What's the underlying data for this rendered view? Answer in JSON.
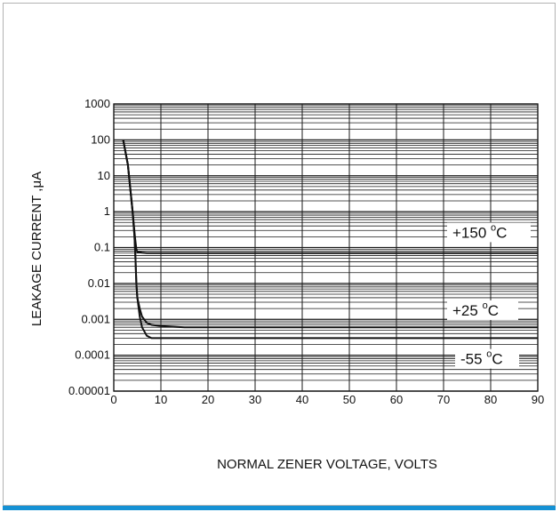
{
  "chart_data": {
    "type": "line",
    "title": "",
    "xlabel": "NORMAL ZENER VOLTAGE, VOLTS",
    "ylabel": "LEAKAGE CURRENT ,μA",
    "xlim": [
      0,
      90
    ],
    "ylim": [
      1e-05,
      1000
    ],
    "yscale": "log",
    "grid": true,
    "x_ticks": [
      "0",
      "10",
      "20",
      "30",
      "40",
      "50",
      "60",
      "70",
      "80",
      "90"
    ],
    "y_ticks": [
      "0.00001",
      "0.0001",
      "0.001",
      "0.01",
      "0.1",
      "1",
      "10",
      "100",
      "1000"
    ],
    "series": [
      {
        "name": "+150 °C",
        "label_main": "+150",
        "label_sup": "o",
        "label_unit": "C",
        "x": [
          2,
          3,
          4,
          4.5,
          4.8,
          5,
          6,
          7,
          10,
          20,
          30,
          40,
          50,
          60,
          70,
          80,
          90
        ],
        "y": [
          100,
          20,
          1,
          0.2,
          0.09,
          0.075,
          0.072,
          0.07,
          0.07,
          0.07,
          0.07,
          0.07,
          0.07,
          0.07,
          0.07,
          0.07,
          0.07
        ]
      },
      {
        "name": "+25 °C",
        "label_main": "+25",
        "label_sup": "o",
        "label_unit": "C",
        "x": [
          2,
          3,
          4,
          4.4,
          4.6,
          4.8,
          5,
          5.5,
          6,
          7,
          8,
          10,
          15,
          20,
          30,
          40,
          50,
          60,
          70,
          80,
          90
        ],
        "y": [
          100,
          20,
          1,
          0.2,
          0.05,
          0.01,
          0.004,
          0.002,
          0.0012,
          0.0008,
          0.0007,
          0.00065,
          0.0006,
          0.0006,
          0.0006,
          0.0006,
          0.0006,
          0.0006,
          0.0006,
          0.0006,
          0.0006
        ]
      },
      {
        "name": "-55 °C",
        "label_main": "-55",
        "label_sup": "o",
        "label_unit": "C",
        "x": [
          2,
          3,
          4,
          4.4,
          4.6,
          4.8,
          5,
          5.5,
          6,
          7,
          8,
          10,
          20,
          30,
          40,
          50,
          60,
          70,
          80,
          90
        ],
        "y": [
          100,
          20,
          1,
          0.2,
          0.05,
          0.01,
          0.004,
          0.0012,
          0.0006,
          0.00035,
          0.0003,
          0.0003,
          0.0003,
          0.0003,
          0.0003,
          0.0003,
          0.0003,
          0.0003,
          0.0003,
          0.0003
        ]
      }
    ]
  },
  "colors": {
    "frame_border": "#b3b3b3",
    "accent_bar": "#1591d4",
    "grid": "#1a1a1a",
    "curve": "#111111"
  }
}
